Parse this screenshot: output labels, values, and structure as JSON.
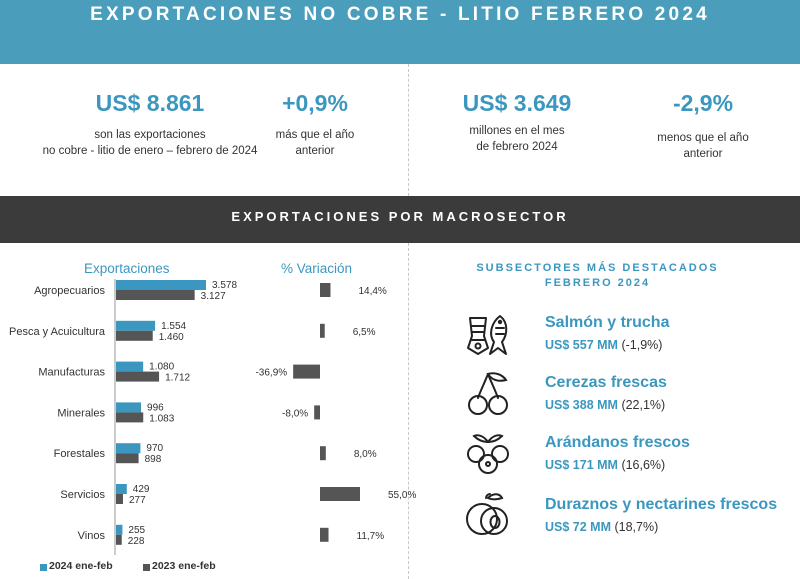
{
  "title": "EXPORTACIONES NO COBRE - LITIO FEBRERO 2024",
  "kpis": {
    "total_value": "US$ 8.861",
    "total_desc_1": "son las exportaciones",
    "total_desc_2": "no cobre - litio de enero – febrero de 2024",
    "total_change": "+0,9%",
    "total_change_desc_1": "más que el año",
    "total_change_desc_2": "anterior",
    "month_value": "US$ 3.649",
    "month_desc_1": "millones en el mes",
    "month_desc_2": "de febrero 2024",
    "month_change": "-2,9%",
    "month_change_desc_1": "menos que el año",
    "month_change_desc_2": "anterior"
  },
  "section_title": "EXPORTACIONES POR MACROSECTOR",
  "chart_data": {
    "type": "bar",
    "orientation": "horizontal",
    "column_titles": [
      "Exportaciones",
      "% Variación"
    ],
    "categories": [
      "Agropecuarios",
      "Pesca y Acuicultura",
      "Manufacturas",
      "Minerales",
      "Forestales",
      "Servicios",
      "Vinos"
    ],
    "series": [
      {
        "name": "2024 ene-feb",
        "values": [
          3578,
          1554,
          1080,
          996,
          970,
          429,
          255
        ],
        "labels": [
          "3.578",
          "1.554",
          "1.080",
          "996",
          "970",
          "429",
          "255"
        ],
        "color": "#3b97bf"
      },
      {
        "name": "2023 ene-feb",
        "values": [
          3127,
          1460,
          1712,
          1083,
          898,
          277,
          228
        ],
        "labels": [
          "3.127",
          "1.460",
          "1.712",
          "1.083",
          "898",
          "277",
          "228"
        ],
        "color": "#555555"
      }
    ],
    "variation": {
      "values": [
        14.4,
        6.5,
        -36.9,
        -8.0,
        8.0,
        55.0,
        11.7
      ],
      "labels": [
        "14,4%",
        "6,5%",
        "-36,9%",
        "-8,0%",
        "8,0%",
        "55,0%",
        "11,7%"
      ],
      "color": "#555555"
    },
    "legend_position": "bottom-left",
    "grid": false
  },
  "subsectors": {
    "title_line_1": "SUBSECTORES MÁS DESTACADOS",
    "title_line_2": "FEBRERO 2024",
    "items": [
      {
        "name": "Salmón y trucha",
        "value": "US$ 557 MM",
        "change": "(-1,9%)",
        "icon": "fish-icon"
      },
      {
        "name": "Cerezas frescas",
        "value": "US$ 388 MM",
        "change": "(22,1%)",
        "icon": "cherry-icon"
      },
      {
        "name": "Arándanos frescos",
        "value": "US$ 171 MM",
        "change": "(16,6%)",
        "icon": "blueberry-icon"
      },
      {
        "name": "Duraznos y nectarines frescos",
        "value": "US$ 72 MM",
        "change": "(18,7%)",
        "icon": "peach-icon"
      }
    ]
  },
  "colors": {
    "accent": "#3b97bf",
    "header_band": "#4a9ebc",
    "dark_band": "#3b3b3b",
    "bar_2023": "#555555"
  }
}
